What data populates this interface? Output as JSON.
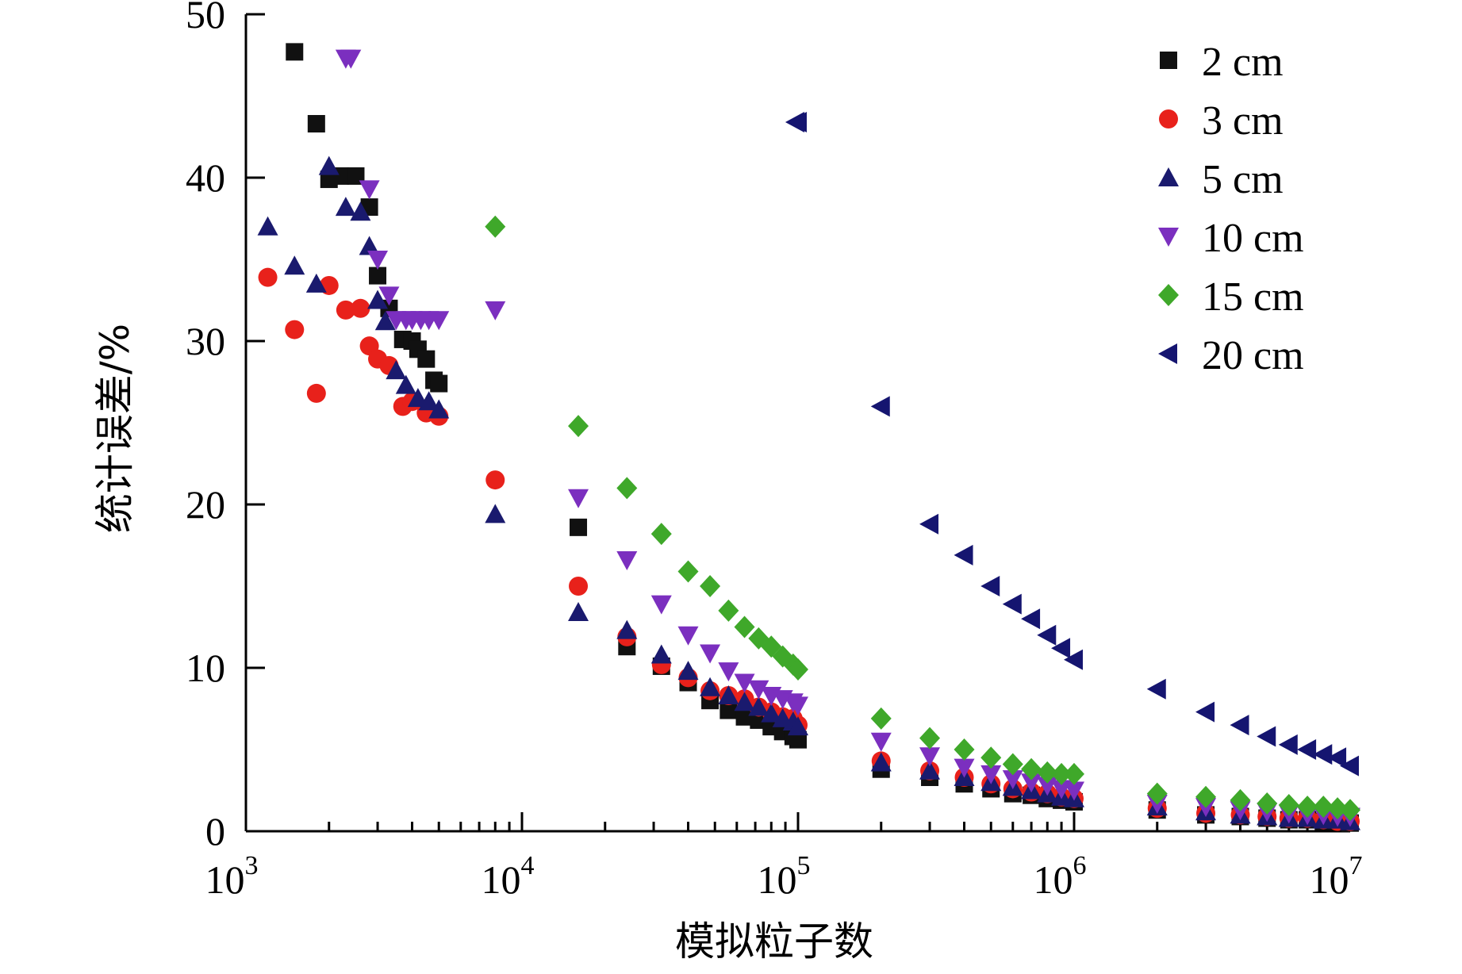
{
  "chart_data": {
    "type": "scatter",
    "title": "",
    "xlabel": "模拟粒子数",
    "ylabel": "统计误差/%",
    "xscale": "log",
    "xlim": [
      1000,
      10000000
    ],
    "ylim": [
      0,
      50
    ],
    "yticks": [
      0,
      10,
      20,
      30,
      40,
      50
    ],
    "xticks": [
      {
        "value": 1000,
        "base": "10",
        "exp": "3"
      },
      {
        "value": 10000,
        "base": "10",
        "exp": "4"
      },
      {
        "value": 100000,
        "base": "10",
        "exp": "5"
      },
      {
        "value": 1000000,
        "base": "10",
        "exp": "6"
      },
      {
        "value": 10000000,
        "base": "10",
        "exp": "7"
      }
    ],
    "legend_position": "top-right",
    "series": [
      {
        "name": "2 cm",
        "marker": "square",
        "color": "#111111",
        "x": [
          1500,
          1800,
          2000,
          2200,
          2500,
          2800,
          3000,
          3300,
          3700,
          4000,
          4200,
          4500,
          4800,
          5000,
          16000,
          24000,
          32000,
          40000,
          48000,
          56000,
          64000,
          72000,
          80000,
          88000,
          96000,
          100000,
          200000,
          300000,
          400000,
          500000,
          600000,
          700000,
          800000,
          900000,
          1000000,
          2000000,
          3000000,
          4000000,
          5000000,
          6000000,
          7000000,
          8000000,
          9000000,
          10000000
        ],
        "y": [
          47.7,
          43.3,
          39.9,
          40.1,
          40.1,
          38.2,
          34.0,
          32.0,
          30.1,
          30.0,
          29.5,
          28.9,
          27.6,
          27.4,
          18.6,
          11.3,
          10.1,
          9.1,
          8.0,
          7.4,
          7.0,
          6.8,
          6.4,
          6.1,
          5.8,
          5.6,
          3.8,
          3.3,
          2.9,
          2.6,
          2.3,
          2.2,
          2.0,
          1.9,
          1.8,
          1.3,
          1.0,
          0.9,
          0.8,
          0.7,
          0.7,
          0.6,
          0.6,
          0.5
        ]
      },
      {
        "name": "3 cm",
        "marker": "circle",
        "color": "#e8211b",
        "x": [
          1200,
          1500,
          1800,
          2000,
          2300,
          2600,
          2800,
          3000,
          3300,
          3700,
          4000,
          4500,
          5000,
          8000,
          16000,
          24000,
          32000,
          40000,
          48000,
          56000,
          64000,
          72000,
          80000,
          88000,
          96000,
          100000,
          200000,
          300000,
          400000,
          500000,
          600000,
          700000,
          800000,
          900000,
          1000000,
          2000000,
          3000000,
          4000000,
          5000000,
          6000000,
          7000000,
          8000000,
          9000000,
          10000000
        ],
        "y": [
          33.9,
          30.7,
          26.8,
          33.4,
          31.9,
          32.0,
          29.7,
          28.9,
          28.5,
          26.0,
          26.3,
          25.6,
          25.4,
          21.5,
          15.0,
          11.9,
          10.2,
          9.4,
          8.6,
          8.3,
          8.1,
          7.6,
          7.3,
          7.0,
          6.9,
          6.5,
          4.3,
          3.7,
          3.3,
          2.9,
          2.6,
          2.4,
          2.3,
          2.1,
          2.0,
          1.4,
          1.1,
          1.0,
          0.9,
          0.8,
          0.8,
          0.7,
          0.6,
          0.6
        ]
      },
      {
        "name": "5 cm",
        "marker": "triangle-up",
        "color": "#1a1a6e",
        "x": [
          1200,
          1500,
          1800,
          2000,
          2300,
          2600,
          2800,
          3000,
          3200,
          3500,
          3800,
          4200,
          4600,
          5000,
          8000,
          16000,
          24000,
          32000,
          40000,
          48000,
          56000,
          64000,
          72000,
          80000,
          88000,
          96000,
          100000,
          200000,
          300000,
          400000,
          500000,
          600000,
          700000,
          800000,
          900000,
          1000000,
          2000000,
          3000000,
          4000000,
          5000000,
          6000000,
          7000000,
          8000000,
          9000000,
          10000000
        ],
        "y": [
          37.0,
          34.6,
          33.5,
          40.7,
          38.2,
          37.9,
          35.8,
          32.5,
          31.2,
          28.2,
          27.3,
          26.5,
          26.3,
          25.8,
          19.4,
          13.4,
          12.3,
          10.8,
          9.8,
          8.8,
          8.3,
          7.9,
          7.6,
          7.2,
          6.9,
          6.7,
          6.4,
          4.2,
          3.7,
          3.3,
          3.0,
          2.7,
          2.5,
          2.3,
          2.1,
          2.0,
          1.5,
          1.2,
          1.0,
          0.9,
          0.8,
          0.8,
          0.7,
          0.7,
          0.6
        ]
      },
      {
        "name": "10 cm",
        "marker": "triangle-down",
        "color": "#7b2fbf",
        "x": [
          2300,
          2400,
          2800,
          3000,
          3300,
          3500,
          3800,
          4000,
          4300,
          4600,
          5000,
          8000,
          16000,
          24000,
          32000,
          40000,
          48000,
          56000,
          64000,
          72000,
          80000,
          88000,
          96000,
          100000,
          200000,
          300000,
          400000,
          500000,
          600000,
          700000,
          800000,
          900000,
          1000000,
          2000000,
          3000000,
          4000000,
          5000000,
          6000000,
          7000000,
          8000000,
          9000000,
          10000000
        ],
        "y": [
          47.3,
          47.3,
          39.3,
          35.0,
          32.8,
          31.3,
          31.3,
          31.3,
          31.3,
          31.3,
          31.3,
          31.9,
          20.4,
          16.6,
          13.9,
          12.0,
          10.9,
          9.8,
          9.1,
          8.7,
          8.3,
          8.1,
          7.9,
          7.7,
          5.5,
          4.6,
          3.9,
          3.5,
          3.2,
          3.0,
          2.8,
          2.6,
          2.5,
          1.7,
          1.5,
          1.3,
          1.2,
          1.1,
          1.0,
          1.0,
          0.9,
          0.9
        ]
      },
      {
        "name": "15 cm",
        "marker": "diamond",
        "color": "#3fa82a",
        "x": [
          8000,
          16000,
          24000,
          32000,
          40000,
          48000,
          56000,
          64000,
          72000,
          80000,
          88000,
          96000,
          100000,
          200000,
          300000,
          400000,
          500000,
          600000,
          700000,
          800000,
          900000,
          1000000,
          2000000,
          3000000,
          4000000,
          5000000,
          6000000,
          7000000,
          8000000,
          9000000,
          10000000
        ],
        "y": [
          37.0,
          24.8,
          21.0,
          18.2,
          15.9,
          15.0,
          13.5,
          12.5,
          11.8,
          11.3,
          10.7,
          10.2,
          9.9,
          6.9,
          5.7,
          5.0,
          4.5,
          4.1,
          3.8,
          3.6,
          3.5,
          3.5,
          2.3,
          2.1,
          1.9,
          1.7,
          1.6,
          1.5,
          1.5,
          1.4,
          1.3
        ]
      },
      {
        "name": "20 cm",
        "marker": "triangle-left",
        "color": "#151570",
        "x": [
          98000,
          100000,
          200000,
          300000,
          400000,
          500000,
          600000,
          700000,
          800000,
          900000,
          1000000,
          2000000,
          3000000,
          4000000,
          5000000,
          6000000,
          7000000,
          8000000,
          9000000,
          10000000
        ],
        "y": [
          43.4,
          43.4,
          26.0,
          18.8,
          16.9,
          15.0,
          13.9,
          13.0,
          12.0,
          11.2,
          10.5,
          8.7,
          7.3,
          6.5,
          5.8,
          5.3,
          5.0,
          4.7,
          4.5,
          4.0
        ]
      }
    ]
  }
}
